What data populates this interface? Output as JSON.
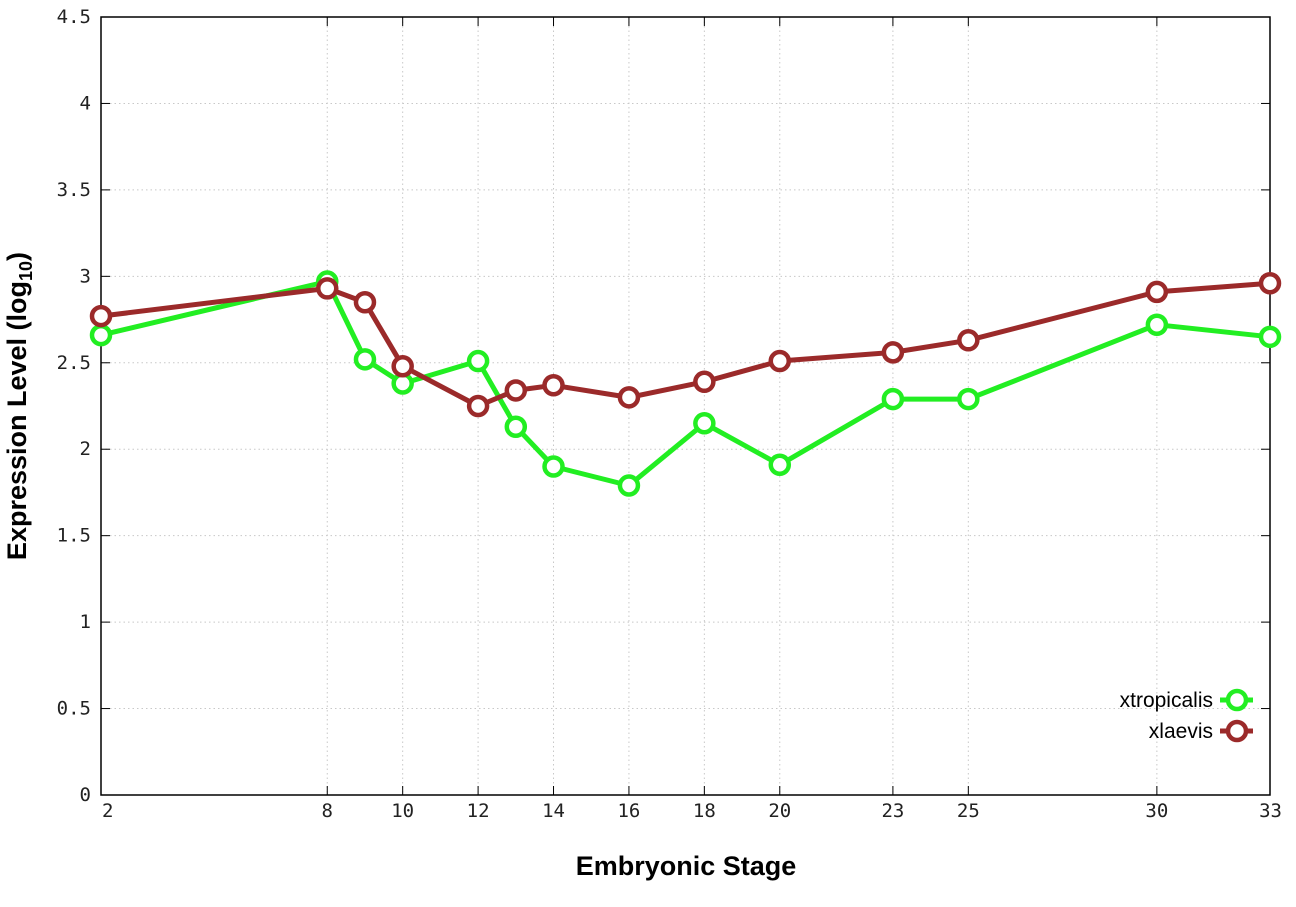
{
  "chart_data": {
    "type": "line",
    "xlabel": "Embryonic Stage",
    "ylabel_main": "Expression Level (log",
    "ylabel_sub": "10",
    "ylabel_close": ")",
    "xlim": [
      2,
      33
    ],
    "ylim": [
      0,
      4.5
    ],
    "x_ticks": [
      2,
      8,
      10,
      12,
      14,
      16,
      18,
      20,
      23,
      25,
      30,
      33
    ],
    "x_tick_labels": [
      "2",
      "8",
      "10",
      "12",
      "14",
      "16",
      "18",
      "20",
      "23",
      "25",
      "30",
      "33"
    ],
    "y_ticks": [
      0,
      0.5,
      1,
      1.5,
      2,
      2.5,
      3,
      3.5,
      4,
      4.5
    ],
    "y_tick_labels": [
      "0",
      "0.5",
      "1",
      "1.5",
      "2",
      "2.5",
      "3",
      "3.5",
      "4",
      "4.5"
    ],
    "grid": true,
    "legend_position": "bottom-right",
    "x": [
      2,
      8,
      9,
      10,
      12,
      13,
      14,
      16,
      18,
      20,
      23,
      25,
      30,
      33
    ],
    "series": [
      {
        "name": "xtropicalis",
        "color": "#22ee22",
        "values": [
          2.66,
          2.97,
          2.52,
          2.38,
          2.51,
          2.13,
          1.9,
          1.79,
          2.15,
          1.91,
          2.29,
          2.29,
          2.72,
          2.65
        ]
      },
      {
        "name": "xlaevis",
        "color": "#9b2a2a",
        "values": [
          2.77,
          2.93,
          2.85,
          2.48,
          2.25,
          2.34,
          2.37,
          2.3,
          2.39,
          2.51,
          2.56,
          2.63,
          2.91,
          2.96
        ]
      }
    ]
  }
}
